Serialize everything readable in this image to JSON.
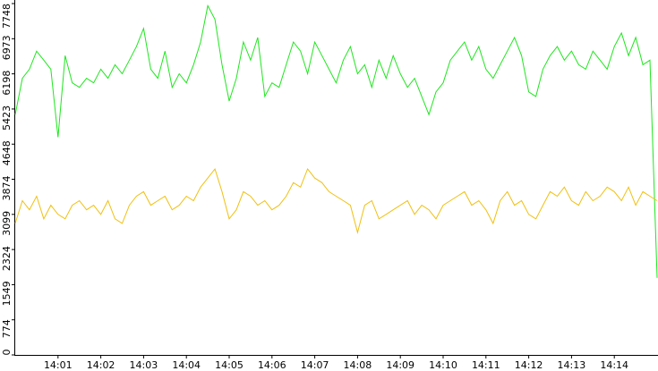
{
  "chart_data": {
    "type": "line",
    "categories": [
      null,
      null,
      null,
      null,
      null,
      null,
      "14:01",
      null,
      null,
      null,
      null,
      null,
      "14:02",
      null,
      null,
      null,
      null,
      null,
      "14:03",
      null,
      null,
      null,
      null,
      null,
      "14:04",
      null,
      null,
      null,
      null,
      null,
      "14:05",
      null,
      null,
      null,
      null,
      null,
      "14:06",
      null,
      null,
      null,
      null,
      null,
      "14:07",
      null,
      null,
      null,
      null,
      null,
      "14:08",
      null,
      null,
      null,
      null,
      null,
      "14:09",
      null,
      null,
      null,
      null,
      null,
      "14:10",
      null,
      null,
      null,
      null,
      null,
      "14:11",
      null,
      null,
      null,
      null,
      null,
      "14:12",
      null,
      null,
      null,
      null,
      null,
      "14:13",
      null,
      null,
      null,
      null,
      null,
      "14:14",
      null,
      null,
      null,
      null,
      null,
      null
    ],
    "series": [
      {
        "color": "#1ee61e",
        "values": [
          5300,
          6100,
          6300,
          6700,
          6500,
          6300,
          4800,
          6600,
          6000,
          5900,
          6100,
          6000,
          6300,
          6100,
          6400,
          6200,
          6500,
          6800,
          7200,
          6300,
          6100,
          6700,
          5900,
          6200,
          6000,
          6400,
          6900,
          7700,
          7400,
          6400,
          5600,
          6100,
          6900,
          6500,
          7000,
          5700,
          6000,
          5900,
          6400,
          6900,
          6700,
          6200,
          6900,
          6600,
          6300,
          6000,
          6500,
          6800,
          6200,
          6400,
          5900,
          6500,
          6100,
          6600,
          6200,
          5900,
          6100,
          5700,
          5300,
          5800,
          6000,
          6500,
          6700,
          6900,
          6500,
          6800,
          6300,
          6100,
          6400,
          6700,
          7000,
          6600,
          5800,
          5700,
          6300,
          6600,
          6800,
          6500,
          6700,
          6400,
          6300,
          6700,
          6500,
          6300,
          6800,
          7100,
          6600,
          7000,
          6400,
          6500,
          1700
        ]
      },
      {
        "color": "#f0c010",
        "values": [
          2900,
          3400,
          3200,
          3500,
          3000,
          3300,
          3100,
          3000,
          3300,
          3400,
          3200,
          3300,
          3100,
          3400,
          3000,
          2900,
          3300,
          3500,
          3600,
          3300,
          3400,
          3500,
          3200,
          3300,
          3500,
          3400,
          3700,
          3900,
          4100,
          3600,
          3000,
          3200,
          3600,
          3500,
          3300,
          3400,
          3200,
          3300,
          3500,
          3800,
          3700,
          4100,
          3900,
          3800,
          3600,
          3500,
          3400,
          3300,
          2700,
          3300,
          3400,
          3000,
          3100,
          3200,
          3300,
          3400,
          3100,
          3300,
          3200,
          3000,
          3300,
          3400,
          3500,
          3600,
          3300,
          3400,
          3200,
          2900,
          3400,
          3600,
          3300,
          3400,
          3100,
          3000,
          3300,
          3600,
          3500,
          3700,
          3400,
          3300,
          3600,
          3400,
          3500,
          3700,
          3600,
          3400,
          3700,
          3300,
          3600,
          3500,
          3400
        ]
      }
    ],
    "ylim": [
      0,
      7748
    ],
    "yticks": [
      0,
      774,
      1549,
      2324,
      3099,
      3874,
      4648,
      5423,
      6198,
      6973,
      7748
    ]
  }
}
